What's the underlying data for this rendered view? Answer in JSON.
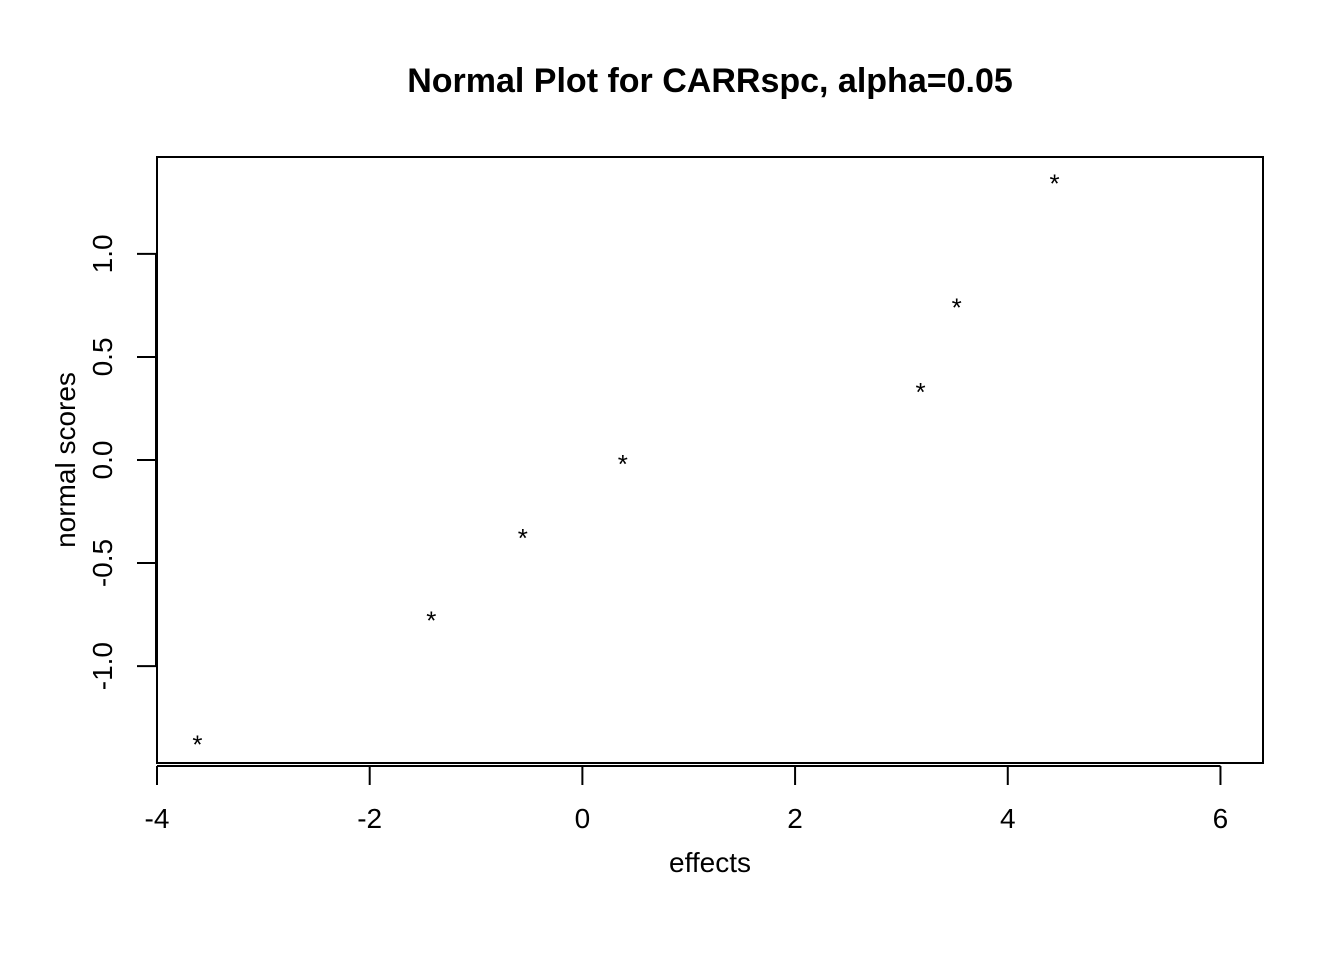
{
  "chart_data": {
    "type": "scatter",
    "title": "Normal Plot for CARRspc, alpha=0.05",
    "xlabel": "effects",
    "ylabel": "normal scores",
    "xlim": [
      -4,
      6.4
    ],
    "ylim": [
      -1.47,
      1.47
    ],
    "xticks": [
      -4,
      -2,
      0,
      2,
      4,
      6
    ],
    "yticks": [
      -1.0,
      -0.5,
      0.0,
      0.5,
      1.0
    ],
    "xtick_labels": [
      "-4",
      "-2",
      "0",
      "2",
      "4",
      "6"
    ],
    "ytick_labels": [
      "-1.0",
      "-0.5",
      "0.0",
      "0.5",
      "1.0"
    ],
    "marker": "*",
    "grid": false,
    "box": true,
    "points": [
      {
        "x": -3.62,
        "y": -1.36
      },
      {
        "x": -1.42,
        "y": -0.76
      },
      {
        "x": -0.56,
        "y": -0.36
      },
      {
        "x": 0.38,
        "y": 0.0
      },
      {
        "x": 3.18,
        "y": 0.35
      },
      {
        "x": 3.52,
        "y": 0.76
      },
      {
        "x": 4.44,
        "y": 1.36
      }
    ]
  }
}
